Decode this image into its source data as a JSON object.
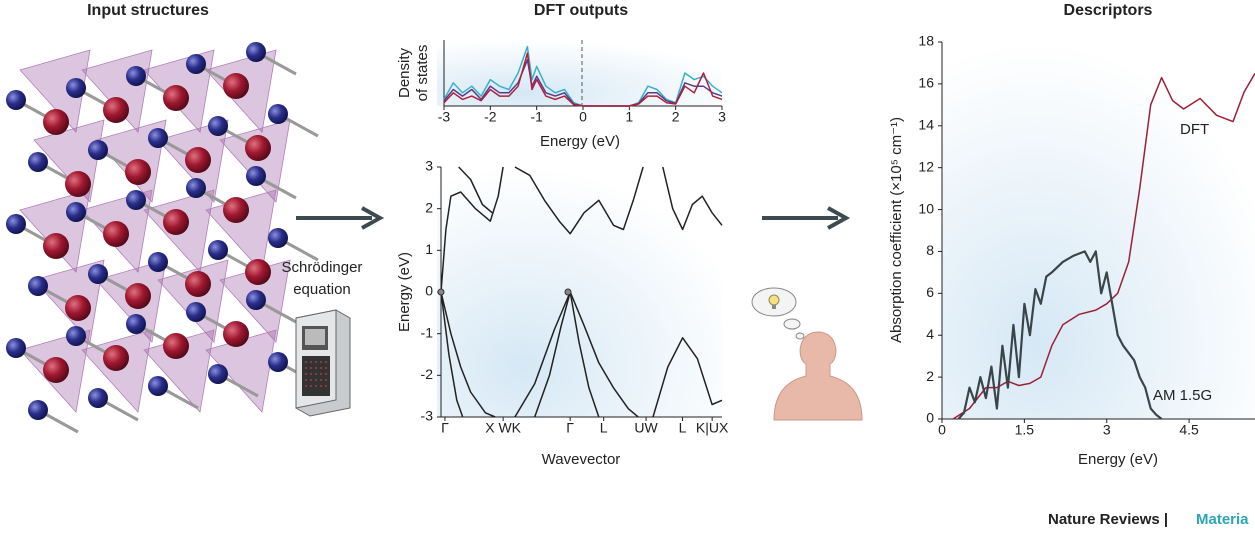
{
  "headings": [
    "Input structures",
    "DFT outputs",
    "Descriptors"
  ],
  "equation_label": [
    "Schrödinger",
    "equation"
  ],
  "journal": "Nature Reviews |",
  "journal_section": "Materia",
  "chart_data": [
    {
      "type": "line",
      "ylabel": [
        "Density",
        "of states"
      ],
      "xlabel": "Energy (eV)",
      "x": [
        -3,
        -2.8,
        -2.6,
        -2.4,
        -2.2,
        -2,
        -1.8,
        -1.6,
        -1.4,
        -1.2,
        -1.1,
        -1,
        -0.8,
        -0.6,
        -0.4,
        -0.2,
        0,
        0.5,
        1,
        1.2,
        1.4,
        1.6,
        1.8,
        2,
        2.2,
        2.4,
        2.6,
        2.8,
        3
      ],
      "xlim": [
        -3,
        3
      ],
      "xticks": [
        -3,
        -2,
        -1,
        0,
        1,
        2,
        3
      ],
      "ylim": [
        0,
        1
      ],
      "series": [
        {
          "color": "#3ab0c8",
          "values": [
            0.1,
            0.35,
            0.2,
            0.3,
            0.15,
            0.4,
            0.3,
            0.25,
            0.5,
            0.9,
            0.4,
            0.6,
            0.3,
            0.2,
            0.25,
            0.05,
            0,
            0,
            0,
            0.05,
            0.3,
            0.25,
            0.1,
            0.05,
            0.5,
            0.4,
            0.45,
            0.3,
            0.2
          ]
        },
        {
          "color": "#5a3a8a",
          "values": [
            0.08,
            0.25,
            0.15,
            0.25,
            0.1,
            0.3,
            0.2,
            0.2,
            0.35,
            0.7,
            0.3,
            0.45,
            0.2,
            0.15,
            0.2,
            0.03,
            0,
            0,
            0,
            0.04,
            0.2,
            0.2,
            0.08,
            0.04,
            0.35,
            0.3,
            0.3,
            0.2,
            0.15
          ]
        },
        {
          "color": "#b0203a",
          "values": [
            0.05,
            0.2,
            0.1,
            0.15,
            0.08,
            0.25,
            0.15,
            0.15,
            0.3,
            0.8,
            0.25,
            0.4,
            0.15,
            0.1,
            0.15,
            0.02,
            0,
            0,
            0,
            0.03,
            0.15,
            0.15,
            0.05,
            0.03,
            0.3,
            0.2,
            0.5,
            0.15,
            0.1
          ]
        }
      ]
    },
    {
      "type": "line",
      "ylabel": "Energy (eV)",
      "xlabel": "Wavevector",
      "xlim": [
        0,
        285
      ],
      "xticks": [
        {
          "value": 4,
          "label": "Γ"
        },
        {
          "value": 63,
          "label": "X WK"
        },
        {
          "value": 131,
          "label": "Γ"
        },
        {
          "value": 165,
          "label": "L"
        },
        {
          "value": 208,
          "label": "UW"
        },
        {
          "value": 245,
          "label": "L"
        },
        {
          "value": 275,
          "label": "K|UX"
        }
      ],
      "ylim": [
        -3,
        3
      ],
      "yticks": [
        -3,
        -2,
        -1,
        0,
        1,
        2,
        3
      ],
      "series": [
        {
          "color": "#222222",
          "x": [
            0,
            5,
            10,
            20,
            35,
            50,
            58,
            63
          ],
          "values": [
            0,
            1.5,
            2.3,
            2.4,
            2.0,
            1.7,
            2.3,
            3
          ]
        },
        {
          "color": "#222222",
          "x": [
            18,
            30,
            42,
            52
          ],
          "values": [
            3,
            2.7,
            2.1,
            1.9
          ]
        },
        {
          "color": "#222222",
          "x": [
            0,
            10,
            20,
            30,
            45,
            55
          ],
          "values": [
            0,
            -1,
            -1.8,
            -2.4,
            -2.9,
            -3
          ]
        },
        {
          "color": "#222222",
          "x": [
            0,
            8,
            16,
            22
          ],
          "values": [
            0,
            -1.5,
            -2.6,
            -3
          ]
        },
        {
          "color": "#222222",
          "x": [
            75,
            90,
            105,
            120,
            131,
            145,
            160,
            175,
            185,
            195,
            205
          ],
          "values": [
            3,
            2.8,
            2.2,
            1.7,
            1.4,
            1.9,
            2.2,
            1.6,
            1.5,
            2.2,
            3
          ]
        },
        {
          "color": "#222222",
          "x": [
            75,
            95,
            115,
            131
          ],
          "values": [
            -3,
            -2.2,
            -0.9,
            0
          ]
        },
        {
          "color": "#222222",
          "x": [
            95,
            110,
            122,
            131
          ],
          "values": [
            -3,
            -2,
            -0.8,
            0
          ]
        },
        {
          "color": "#222222",
          "x": [
            131,
            145,
            160,
            175,
            190,
            200
          ],
          "values": [
            0,
            -0.8,
            -1.7,
            -2.3,
            -2.8,
            -3
          ]
        },
        {
          "color": "#222222",
          "x": [
            131,
            140,
            150,
            160
          ],
          "values": [
            0,
            -1.2,
            -2.3,
            -3
          ]
        },
        {
          "color": "#222222",
          "x": [
            215,
            230,
            245,
            260,
            275,
            285
          ],
          "values": [
            -3,
            -1.8,
            -1.1,
            -1.6,
            -2.7,
            -2.6
          ]
        },
        {
          "color": "#222222",
          "x": [
            225,
            235,
            245,
            255,
            265,
            275,
            285
          ],
          "values": [
            3,
            2.0,
            1.5,
            2.1,
            2.3,
            1.9,
            1.6
          ]
        }
      ]
    },
    {
      "type": "line",
      "ylabel": "Absorption coefficient (×10⁵ cm⁻¹)",
      "xlabel": "Energy (eV)",
      "xlim": [
        0,
        5.7
      ],
      "xticks": [
        0,
        1.5,
        3,
        4.5
      ],
      "ylim": [
        0,
        18
      ],
      "yticks": [
        0,
        2,
        4,
        6,
        8,
        10,
        12,
        14,
        16,
        18
      ],
      "series": [
        {
          "name": "DFT",
          "color": "#9e1f35",
          "x": [
            0.2,
            0.5,
            0.8,
            1,
            1.2,
            1.4,
            1.6,
            1.8,
            2,
            2.2,
            2.5,
            2.8,
            3,
            3.2,
            3.4,
            3.6,
            3.8,
            4,
            4.2,
            4.4,
            4.7,
            5,
            5.3,
            5.5,
            5.7
          ],
          "values": [
            0,
            0.5,
            1.5,
            1.5,
            1.8,
            1.6,
            1.7,
            2,
            3.5,
            4.5,
            5,
            5.2,
            5.5,
            6,
            7.5,
            11,
            15,
            16.3,
            15.2,
            14.8,
            15.3,
            14.5,
            14.2,
            15.6,
            16.5
          ]
        },
        {
          "name": "AM 1.5G",
          "color": "#3a4449",
          "x": [
            0.3,
            0.4,
            0.5,
            0.6,
            0.7,
            0.8,
            0.9,
            1,
            1.1,
            1.2,
            1.3,
            1.4,
            1.5,
            1.6,
            1.7,
            1.8,
            1.9,
            2,
            2.2,
            2.4,
            2.6,
            2.7,
            2.8,
            2.9,
            3,
            3.1,
            3.2,
            3.3,
            3.5,
            3.6,
            3.7,
            3.8,
            3.9,
            4
          ],
          "values": [
            0,
            0.3,
            1.5,
            0.8,
            2.0,
            1.0,
            2.5,
            0.5,
            3.5,
            1.5,
            4.5,
            2,
            5.5,
            4,
            6.2,
            5.5,
            6.8,
            7,
            7.5,
            7.8,
            8,
            7.5,
            8,
            6,
            7,
            5.5,
            4,
            3.5,
            2.8,
            2,
            1.5,
            0.5,
            0.2,
            0
          ]
        }
      ]
    }
  ]
}
